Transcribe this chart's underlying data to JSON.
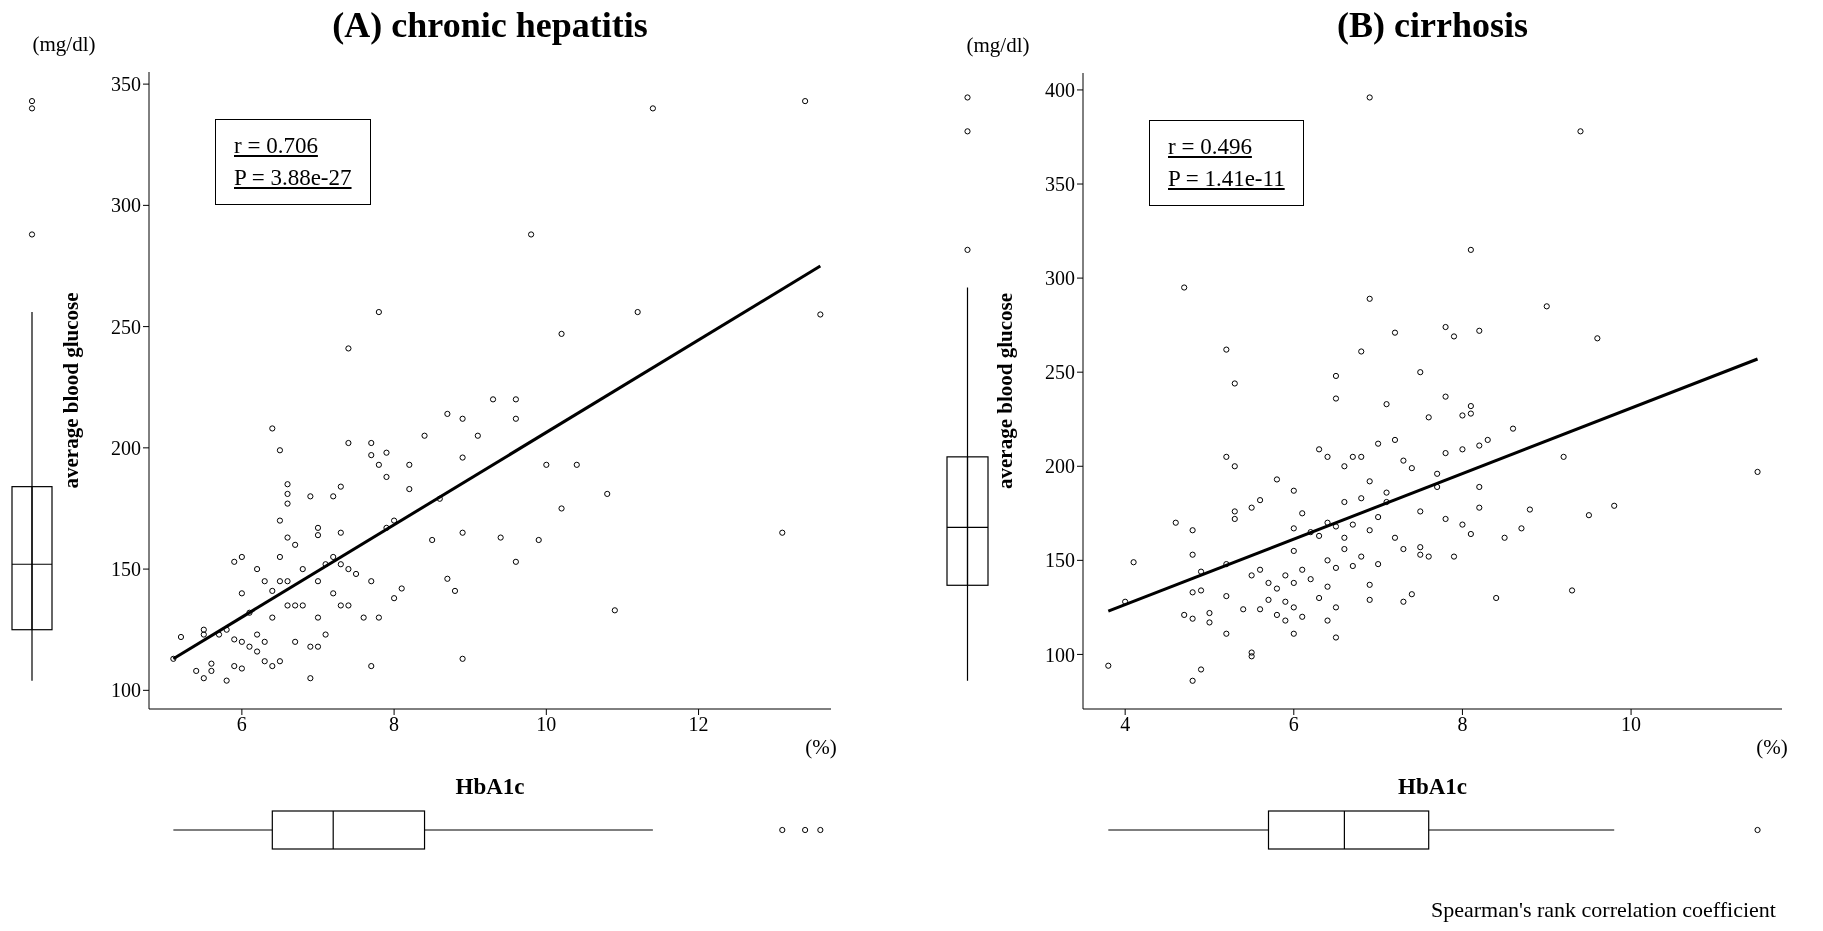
{
  "chart_data": [
    {
      "type": "scatter",
      "title": "(A)  chronic hepatitis",
      "xlabel": "HbA1c",
      "ylabel": "average blood glucose",
      "annotations": [
        "(mg/dl)",
        "(%)",
        "r = 0.706",
        "P = 3.88e-27"
      ],
      "xlim": [
        4.78,
        13.74
      ],
      "ylim": [
        92.3,
        355
      ],
      "xticks": [
        6,
        8,
        10,
        12
      ],
      "yticks": [
        100,
        150,
        200,
        250,
        300,
        350
      ],
      "marker": "circle",
      "series": [
        {
          "type": "scatter",
          "color": "#000000",
          "x": [
            5.1,
            5.2,
            5.4,
            5.5,
            5.5,
            5.5,
            5.6,
            5.6,
            5.7,
            5.8,
            5.8,
            5.9,
            5.9,
            5.9,
            6.0,
            6.0,
            6.0,
            6.0,
            6.1,
            6.1,
            6.2,
            6.2,
            6.2,
            6.3,
            6.3,
            6.3,
            6.4,
            6.4,
            6.4,
            6.4,
            6.5,
            6.5,
            6.5,
            6.5,
            6.5,
            6.6,
            6.6,
            6.6,
            6.6,
            6.6,
            6.6,
            6.7,
            6.7,
            6.7,
            6.8,
            6.8,
            6.9,
            6.9,
            6.9,
            7.0,
            7.0,
            7.0,
            7.0,
            7.0,
            7.1,
            7.1,
            7.2,
            7.2,
            7.2,
            7.3,
            7.3,
            7.3,
            7.3,
            7.4,
            7.4,
            7.4,
            7.4,
            7.5,
            7.6,
            7.7,
            7.7,
            7.7,
            7.7,
            7.8,
            7.8,
            7.8,
            7.9,
            7.9,
            7.9,
            8.0,
            8.0,
            8.1,
            8.2,
            8.2,
            8.4,
            8.5,
            8.6,
            8.7,
            8.7,
            8.8,
            8.9,
            8.9,
            8.9,
            8.9,
            9.1,
            9.3,
            9.4,
            9.6,
            9.6,
            9.6,
            9.8,
            9.9,
            10.0,
            10.2,
            10.2,
            10.4,
            10.8,
            10.9,
            11.2,
            11.4,
            13.1,
            13.4,
            13.6
          ],
          "values": [
            113,
            122,
            108,
            105,
            125,
            123,
            111,
            108,
            123,
            104,
            125,
            110,
            121,
            153,
            109,
            120,
            140,
            155,
            132,
            118,
            116,
            123,
            150,
            112,
            145,
            120,
            208,
            130,
            110,
            141,
            199,
            170,
            145,
            155,
            112,
            185,
            181,
            177,
            163,
            145,
            135,
            160,
            120,
            135,
            150,
            135,
            180,
            105,
            118,
            167,
            164,
            145,
            130,
            118,
            123,
            152,
            180,
            155,
            140,
            184,
            165,
            152,
            135,
            241,
            202,
            150,
            135,
            148,
            130,
            202,
            197,
            145,
            110,
            256,
            193,
            130,
            198,
            188,
            167,
            170,
            138,
            142,
            193,
            183,
            205,
            162,
            179,
            146,
            214,
            141,
            212,
            196,
            113,
            165,
            205,
            220,
            163,
            220,
            212,
            153,
            288,
            162,
            193,
            247,
            175,
            193,
            181,
            133,
            256,
            340,
            165,
            343,
            255
          ]
        },
        {
          "type": "line",
          "color": "#000000",
          "marker": "none",
          "x": [
            5.1,
            13.6
          ],
          "values": [
            113,
            275
          ]
        }
      ]
    },
    {
      "type": "scatter",
      "title": "(B)  cirrhosis",
      "xlabel": "HbA1c",
      "ylabel": "average blood glucose",
      "annotations": [
        "(mg/dl)",
        "(%)",
        "r = 0.496",
        "P = 1.41e-11",
        "Spearman's rank correlation coefficient"
      ],
      "xlim": [
        3.5,
        11.79
      ],
      "ylim": [
        71,
        409
      ],
      "xticks": [
        4,
        6,
        8,
        10
      ],
      "yticks": [
        100,
        150,
        200,
        250,
        300,
        350,
        400
      ],
      "marker": "circle",
      "series": [
        {
          "type": "scatter",
          "color": "#000000",
          "x": [
            3.8,
            4.0,
            4.1,
            4.6,
            4.7,
            4.7,
            4.8,
            4.8,
            4.8,
            4.8,
            4.8,
            4.9,
            4.9,
            4.9,
            5.0,
            5.0,
            5.2,
            5.2,
            5.2,
            5.2,
            5.2,
            5.3,
            5.3,
            5.3,
            5.3,
            5.4,
            5.5,
            5.5,
            5.5,
            5.5,
            5.6,
            5.6,
            5.6,
            5.7,
            5.7,
            5.8,
            5.8,
            5.8,
            5.9,
            5.9,
            5.9,
            6.0,
            6.0,
            6.0,
            6.0,
            6.0,
            6.0,
            6.1,
            6.1,
            6.1,
            6.2,
            6.2,
            6.3,
            6.3,
            6.3,
            6.4,
            6.4,
            6.4,
            6.4,
            6.4,
            6.5,
            6.5,
            6.5,
            6.5,
            6.5,
            6.5,
            6.6,
            6.6,
            6.6,
            6.6,
            6.7,
            6.7,
            6.7,
            6.8,
            6.8,
            6.8,
            6.8,
            6.9,
            6.9,
            6.9,
            6.9,
            6.9,
            6.9,
            7.0,
            7.0,
            7.0,
            7.1,
            7.1,
            7.1,
            7.2,
            7.2,
            7.2,
            7.3,
            7.3,
            7.3,
            7.4,
            7.4,
            7.5,
            7.5,
            7.5,
            7.5,
            7.6,
            7.6,
            7.7,
            7.7,
            7.8,
            7.8,
            7.8,
            7.8,
            7.9,
            7.9,
            8.0,
            8.0,
            8.0,
            8.1,
            8.1,
            8.1,
            8.1,
            8.2,
            8.2,
            8.2,
            8.2,
            8.3,
            8.4,
            8.5,
            8.6,
            8.7,
            8.8,
            9.0,
            9.2,
            9.3,
            9.4,
            9.5,
            9.6,
            9.8,
            11.5
          ],
          "values": [
            94,
            128,
            149,
            170,
            295,
            121,
            166,
            153,
            133,
            119,
            86,
            144,
            134,
            92,
            117,
            122,
            262,
            205,
            148,
            131,
            111,
            244,
            200,
            176,
            172,
            124,
            178,
            142,
            101,
            99,
            182,
            145,
            124,
            129,
            138,
            193,
            135,
            121,
            128,
            142,
            118,
            187,
            167,
            155,
            138,
            125,
            111,
            175,
            145,
            120,
            165,
            140,
            209,
            163,
            130,
            205,
            170,
            150,
            136,
            118,
            248,
            236,
            168,
            146,
            125,
            109,
            200,
            181,
            162,
            156,
            205,
            169,
            147,
            261,
            205,
            183,
            152,
            396,
            289,
            192,
            166,
            137,
            129,
            212,
            173,
            148,
            233,
            186,
            181,
            271,
            214,
            162,
            203,
            156,
            128,
            132,
            199,
            250,
            176,
            157,
            153,
            226,
            152,
            196,
            189,
            274,
            237,
            207,
            172,
            269,
            152,
            227,
            209,
            169,
            315,
            232,
            228,
            164,
            272,
            211,
            189,
            178,
            214,
            130,
            162,
            220,
            167,
            177,
            285,
            205,
            134,
            378,
            174,
            268,
            179,
            197
          ]
        },
        {
          "type": "line",
          "color": "#000000",
          "marker": "none",
          "x": [
            3.8,
            11.5
          ],
          "values": [
            123,
            257
          ]
        }
      ]
    }
  ]
}
